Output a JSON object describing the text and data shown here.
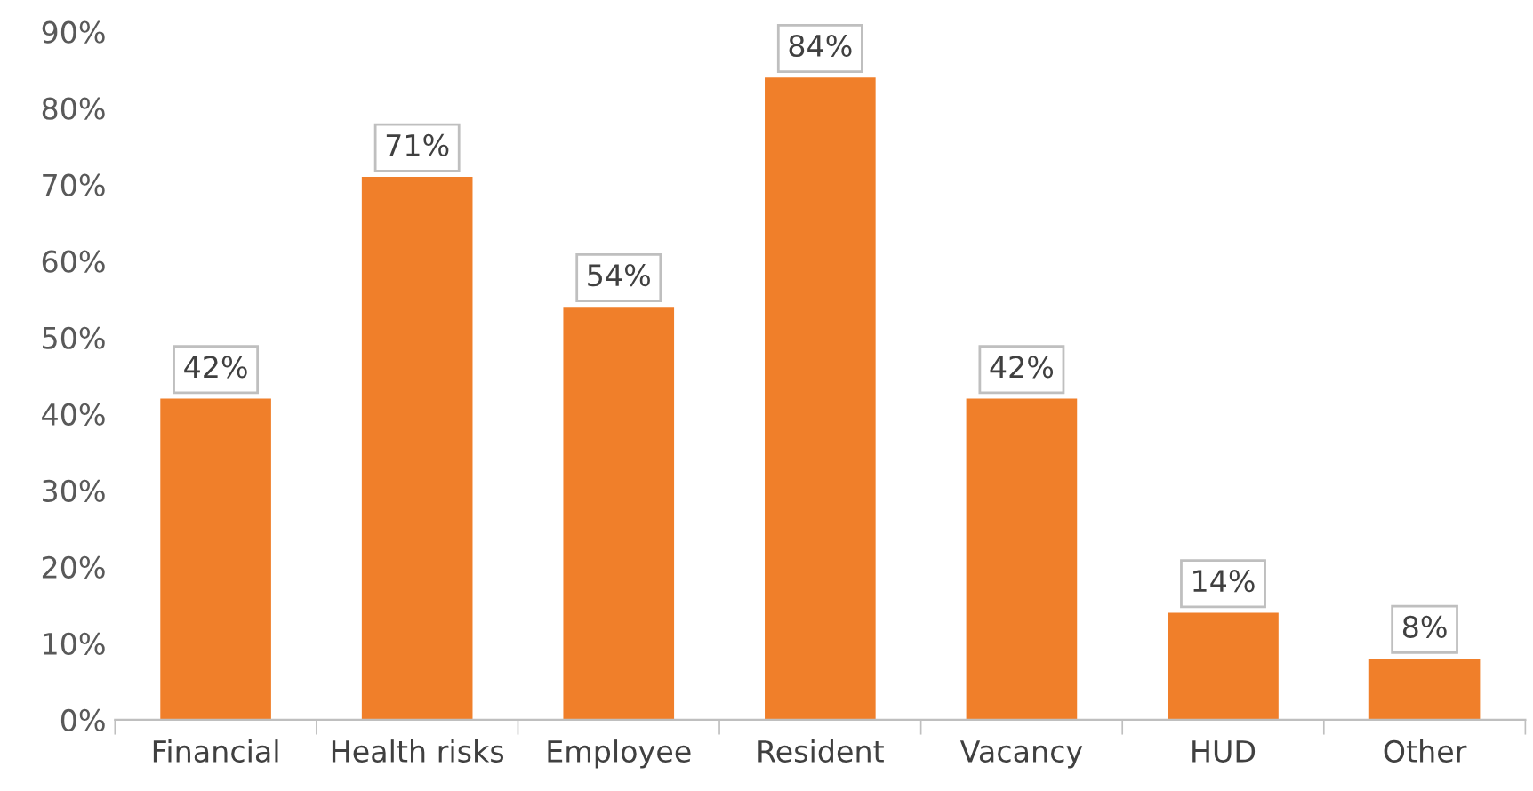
{
  "chart_data": {
    "type": "bar",
    "categories": [
      "Financial",
      "Health risks",
      "Employee",
      "Resident",
      "Vacancy",
      "HUD",
      "Other"
    ],
    "values": [
      42,
      71,
      54,
      84,
      42,
      14,
      8
    ],
    "value_labels": [
      "42%",
      "71%",
      "54%",
      "84%",
      "42%",
      "14%",
      "8%"
    ],
    "color": "#f07f2a",
    "ylim": [
      0,
      90
    ],
    "yticks": [
      {
        "value": 0,
        "label": "0%"
      },
      {
        "value": 10,
        "label": "10%"
      },
      {
        "value": 20,
        "label": "20%"
      },
      {
        "value": 30,
        "label": "30%"
      },
      {
        "value": 40,
        "label": "40%"
      },
      {
        "value": 50,
        "label": "50%"
      },
      {
        "value": 60,
        "label": "60%"
      },
      {
        "value": 70,
        "label": "70%"
      },
      {
        "value": 80,
        "label": "80%"
      },
      {
        "value": 90,
        "label": "90%"
      }
    ]
  }
}
